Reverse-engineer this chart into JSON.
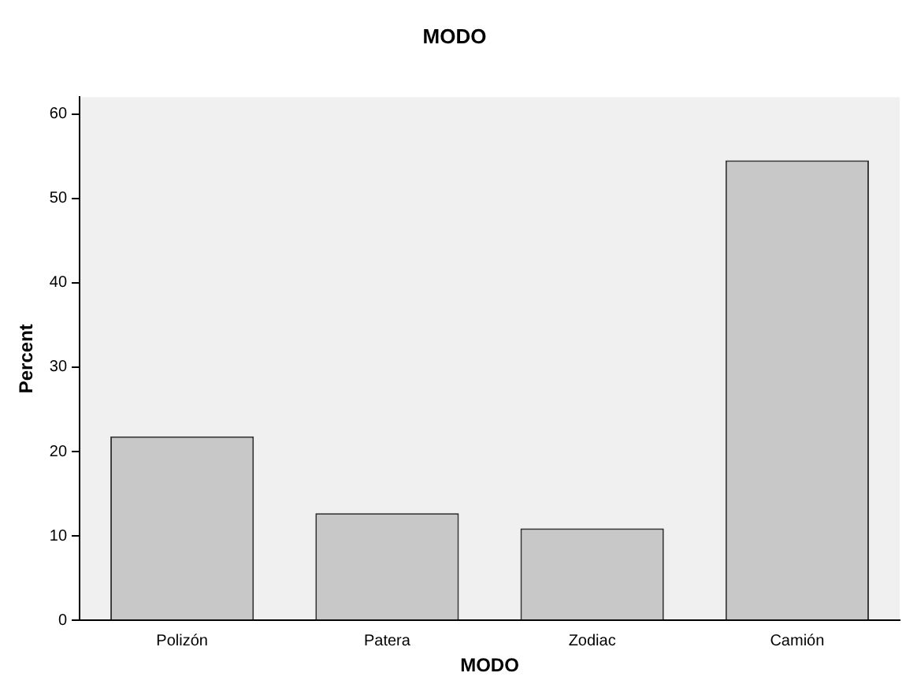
{
  "chart_data": {
    "type": "bar",
    "title": "MODO",
    "xlabel": "MODO",
    "ylabel": "Percent",
    "categories": [
      "Polizón",
      "Patera",
      "Zodiac",
      "Camión"
    ],
    "values": [
      21.8,
      12.7,
      10.9,
      54.5
    ],
    "color": "#c8c8c8",
    "ylim": [
      0,
      62
    ],
    "yticks": [
      0,
      10,
      20,
      30,
      40,
      50,
      60
    ],
    "grid": false,
    "legend": false
  }
}
